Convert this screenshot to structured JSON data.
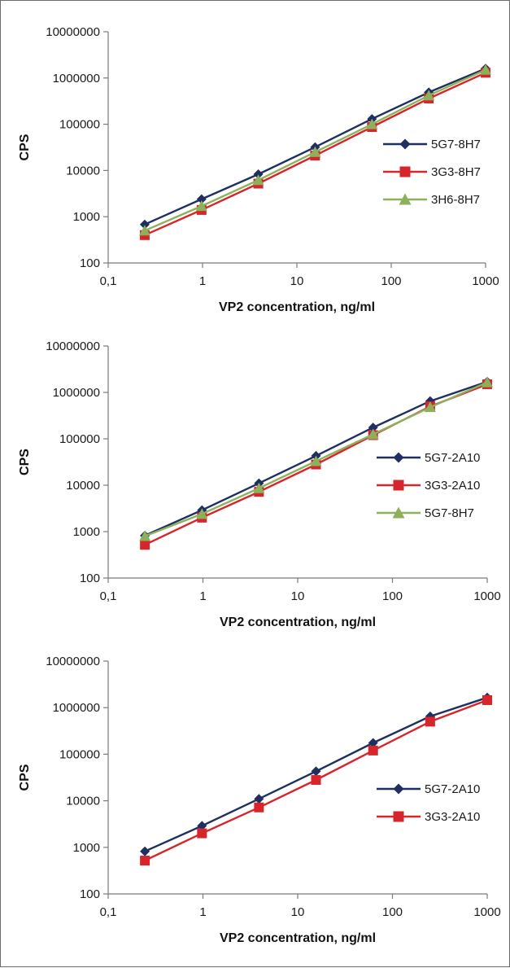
{
  "chart_data": [
    {
      "type": "line",
      "xlabel": "VP2 concentration, ng/ml",
      "ylabel": "CPS",
      "x_scale": "log",
      "y_scale": "log",
      "xlim": [
        0.1,
        1000
      ],
      "ylim": [
        100,
        10000000
      ],
      "x_ticks": [
        "0,1",
        "1",
        "10",
        "100",
        "1000"
      ],
      "y_ticks": [
        "100",
        "1000",
        "10000",
        "100000",
        "1000000",
        "10000000"
      ],
      "grid": false,
      "legend_position": "right",
      "x": [
        0.244,
        0.977,
        3.9,
        15.6,
        62.5,
        250,
        1000
      ],
      "series": [
        {
          "name": "5G7-8H7",
          "marker": "diamond",
          "color": "#1f2f5f",
          "values": [
            680,
            2400,
            8300,
            32000,
            130000,
            490000,
            1600000
          ]
        },
        {
          "name": "3G3-8H7",
          "marker": "square",
          "color": "#d7262b",
          "values": [
            400,
            1400,
            5200,
            21000,
            87000,
            360000,
            1300000
          ]
        },
        {
          "name": "3H6-8H7",
          "marker": "triangle",
          "color": "#8db15a",
          "values": [
            500,
            1700,
            6200,
            25000,
            100000,
            420000,
            1500000
          ]
        }
      ]
    },
    {
      "type": "line",
      "xlabel": "VP2 concentration, ng/ml",
      "ylabel": "CPS",
      "x_scale": "log",
      "y_scale": "log",
      "xlim": [
        0.1,
        1000
      ],
      "ylim": [
        100,
        10000000
      ],
      "x_ticks": [
        "0,1",
        "1",
        "10",
        "100",
        "1000"
      ],
      "y_ticks": [
        "100",
        "1000",
        "10000",
        "100000",
        "1000000",
        "10000000"
      ],
      "grid": false,
      "legend_position": "right",
      "x": [
        0.244,
        0.977,
        3.9,
        15.6,
        62.5,
        250,
        1000
      ],
      "series": [
        {
          "name": "5G7-2A10",
          "marker": "diamond",
          "color": "#1f2f5f",
          "values": [
            820,
            2900,
            11000,
            43000,
            175000,
            650000,
            1700000
          ]
        },
        {
          "name": "3G3-2A10",
          "marker": "square",
          "color": "#d7262b",
          "values": [
            520,
            2000,
            7200,
            28000,
            120000,
            500000,
            1500000
          ]
        },
        {
          "name": "5G7-8H7",
          "marker": "triangle",
          "color": "#8db15a",
          "values": [
            800,
            2400,
            8600,
            33000,
            125000,
            480000,
            1650000
          ]
        }
      ]
    },
    {
      "type": "line",
      "xlabel": "VP2 concentration, ng/ml",
      "ylabel": "CPS",
      "x_scale": "log",
      "y_scale": "log",
      "xlim": [
        0.1,
        1000
      ],
      "ylim": [
        100,
        10000000
      ],
      "x_ticks": [
        "0,1",
        "1",
        "10",
        "100",
        "1000"
      ],
      "y_ticks": [
        "100",
        "1000",
        "10000",
        "100000",
        "1000000",
        "10000000"
      ],
      "grid": false,
      "legend_position": "right",
      "x": [
        0.244,
        0.977,
        3.9,
        15.6,
        62.5,
        250,
        1000
      ],
      "series": [
        {
          "name": "5G7-2A10",
          "marker": "diamond",
          "color": "#1f2f5f",
          "values": [
            820,
            2900,
            11000,
            43000,
            175000,
            650000,
            1650000
          ]
        },
        {
          "name": "3G3-2A10",
          "marker": "square",
          "color": "#d7262b",
          "values": [
            520,
            2000,
            7200,
            28000,
            120000,
            500000,
            1450000
          ]
        }
      ]
    }
  ]
}
